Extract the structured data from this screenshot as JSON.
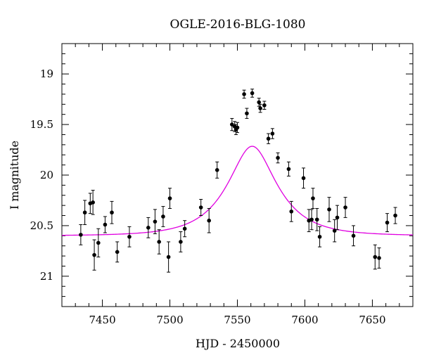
{
  "chart_data": {
    "type": "scatter",
    "title": "OGLE-2016-BLG-1080",
    "xlabel": "HJD - 2450000",
    "ylabel": "I magnitude",
    "xlim": [
      7420,
      7680
    ],
    "ylim": [
      21.3,
      18.7
    ],
    "y_inverted": true,
    "grid": false,
    "x_ticks": [
      7450,
      7500,
      7550,
      7600,
      7650
    ],
    "y_ticks": [
      19,
      19.5,
      20,
      20.5,
      21
    ],
    "y_tick_labels": [
      "19",
      "19.5",
      "20",
      "20.5",
      "21"
    ],
    "colors": {
      "points": "#000000",
      "model": "#e000e0",
      "frame": "#000000"
    },
    "points": {
      "name": "",
      "x": [
        7434,
        7437,
        7441,
        7443,
        7444,
        7447,
        7452,
        7457,
        7461,
        7470,
        7484,
        7489,
        7492,
        7495,
        7499,
        7500,
        7508,
        7511,
        7523,
        7529,
        7535,
        7546,
        7548,
        7549,
        7550,
        7555,
        7557,
        7561,
        7566,
        7567,
        7570,
        7573,
        7576,
        7580,
        7588,
        7590,
        7599,
        7603,
        7605,
        7606,
        7609,
        7611,
        7618,
        7622,
        7624,
        7630,
        7636,
        7652,
        7655,
        7661,
        7667
      ],
      "y": [
        20.59,
        20.37,
        20.28,
        20.27,
        20.79,
        20.67,
        20.49,
        20.37,
        20.76,
        20.61,
        20.52,
        20.46,
        20.66,
        20.41,
        20.81,
        20.23,
        20.66,
        20.53,
        20.32,
        20.45,
        19.95,
        19.5,
        19.52,
        19.55,
        19.53,
        19.2,
        19.39,
        19.19,
        19.28,
        19.34,
        19.31,
        19.64,
        19.59,
        19.83,
        19.94,
        20.36,
        20.03,
        20.45,
        20.44,
        20.23,
        20.44,
        20.61,
        20.34,
        20.55,
        20.42,
        20.32,
        20.6,
        20.81,
        20.82,
        20.47,
        20.4
      ],
      "yerr": [
        0.1,
        0.12,
        0.1,
        0.12,
        0.15,
        0.14,
        0.08,
        0.11,
        0.1,
        0.1,
        0.1,
        0.12,
        0.12,
        0.1,
        0.15,
        0.1,
        0.1,
        0.08,
        0.08,
        0.12,
        0.08,
        0.06,
        0.05,
        0.05,
        0.05,
        0.04,
        0.05,
        0.04,
        0.04,
        0.04,
        0.04,
        0.05,
        0.05,
        0.05,
        0.07,
        0.1,
        0.1,
        0.11,
        0.1,
        0.1,
        0.11,
        0.1,
        0.12,
        0.11,
        0.12,
        0.1,
        0.1,
        0.12,
        0.1,
        0.09,
        0.08
      ]
    },
    "model": {
      "name": "",
      "baseline_mag": 20.6,
      "t0": 7561,
      "u0": 0.48,
      "tE": 32
    }
  }
}
